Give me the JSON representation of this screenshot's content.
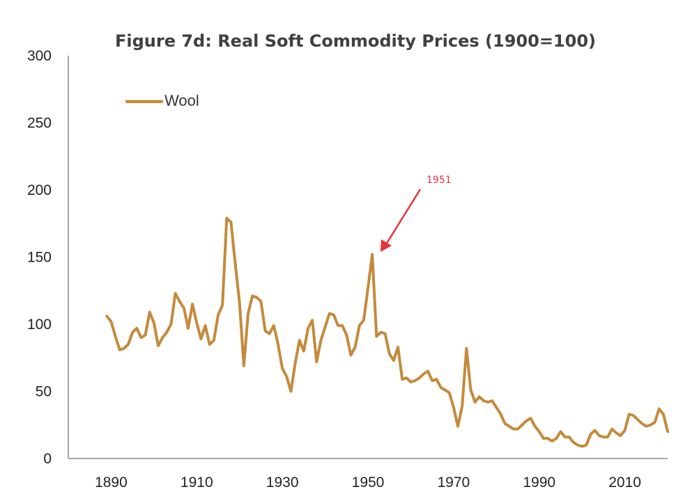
{
  "chart_data": {
    "type": "line",
    "title": "Figure 7d: Real Soft Commodity Prices (1900=100)",
    "xlabel": "",
    "ylabel": "",
    "xlim": [
      1880,
      2020
    ],
    "ylim": [
      0,
      300
    ],
    "x_ticks": [
      1890,
      1910,
      1930,
      1950,
      1970,
      1990,
      2010
    ],
    "y_ticks": [
      0,
      50,
      100,
      150,
      200,
      250,
      300
    ],
    "grid": false,
    "legend_position": "top-left",
    "series": [
      {
        "name": "Wool",
        "color": "#c48a3c",
        "x": [
          1889,
          1890,
          1891,
          1892,
          1893,
          1894,
          1895,
          1896,
          1897,
          1898,
          1899,
          1900,
          1901,
          1902,
          1903,
          1904,
          1905,
          1906,
          1907,
          1908,
          1909,
          1910,
          1911,
          1912,
          1913,
          1914,
          1915,
          1916,
          1917,
          1918,
          1919,
          1920,
          1921,
          1922,
          1923,
          1924,
          1925,
          1926,
          1927,
          1928,
          1929,
          1930,
          1931,
          1932,
          1933,
          1934,
          1935,
          1936,
          1937,
          1938,
          1939,
          1940,
          1941,
          1942,
          1943,
          1944,
          1945,
          1946,
          1947,
          1948,
          1949,
          1950,
          1951,
          1952,
          1953,
          1954,
          1955,
          1956,
          1957,
          1958,
          1959,
          1960,
          1961,
          1962,
          1963,
          1964,
          1965,
          1966,
          1967,
          1968,
          1969,
          1970,
          1971,
          1972,
          1973,
          1974,
          1975,
          1976,
          1977,
          1978,
          1979,
          1980,
          1981,
          1982,
          1983,
          1984,
          1985,
          1986,
          1987,
          1988,
          1989,
          1990,
          1991,
          1992,
          1993,
          1994,
          1995,
          1996,
          1997,
          1998,
          1999,
          2000,
          2001,
          2002,
          2003,
          2004,
          2005,
          2006,
          2007,
          2008,
          2009,
          2010,
          2011,
          2012,
          2013,
          2014,
          2015,
          2016,
          2017,
          2018,
          2019,
          2020
        ],
        "y": [
          106,
          102,
          91,
          81,
          82,
          85,
          94,
          97,
          90,
          92,
          109,
          101,
          84,
          90,
          94,
          100,
          123,
          117,
          112,
          97,
          115,
          101,
          89,
          99,
          85,
          88,
          107,
          114,
          179,
          176,
          145,
          116,
          69,
          108,
          121,
          120,
          117,
          95,
          93,
          99,
          85,
          67,
          61,
          50,
          71,
          88,
          80,
          97,
          103,
          72,
          88,
          98,
          108,
          107,
          99,
          99,
          92,
          77,
          83,
          99,
          103,
          127,
          152,
          91,
          94,
          93,
          78,
          73,
          83,
          59,
          60,
          57,
          58,
          60,
          63,
          65,
          58,
          59,
          53,
          51,
          49,
          38,
          24,
          39,
          82,
          51,
          42,
          46,
          43,
          42,
          43,
          38,
          33,
          26,
          24,
          22,
          22,
          25,
          28,
          30,
          24,
          20,
          15,
          15,
          13,
          15,
          20,
          16,
          16,
          12,
          10,
          9,
          10,
          18,
          21,
          17,
          16,
          16,
          22,
          19,
          17,
          21,
          33,
          32,
          29,
          26,
          24,
          25,
          27,
          37,
          33,
          20
        ]
      }
    ],
    "annotations": [
      {
        "text": "1951",
        "color": "#e8323c",
        "target_x": 1951,
        "target_y": 152
      }
    ]
  }
}
